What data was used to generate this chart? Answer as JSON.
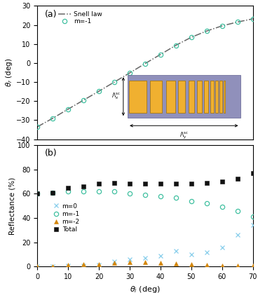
{
  "panel_a": {
    "title": "(a)",
    "ylabel": "θ_r (deg)",
    "xlim": [
      0,
      70
    ],
    "ylim": [
      -40,
      30
    ],
    "yticks": [
      -40,
      -30,
      -20,
      -10,
      0,
      10,
      20,
      30
    ],
    "snell_x": [
      0,
      5,
      10,
      15,
      20,
      25,
      30,
      35,
      40,
      45,
      50,
      55,
      60,
      65,
      70
    ],
    "snell_y": [
      -33.5,
      -29.0,
      -24.2,
      -19.5,
      -14.8,
      -10.0,
      -5.2,
      -0.3,
      4.5,
      9.3,
      13.5,
      16.8,
      19.5,
      21.5,
      23.2
    ],
    "m1_x": [
      0,
      5,
      10,
      15,
      20,
      25,
      30,
      35,
      40,
      45,
      50,
      55,
      60,
      65,
      70
    ],
    "m1_y": [
      -33.5,
      -29.0,
      -24.2,
      -19.5,
      -14.8,
      -10.0,
      -5.2,
      -0.3,
      4.5,
      9.3,
      13.5,
      16.8,
      19.5,
      21.5,
      23.2
    ],
    "snell_color": "#666666",
    "m1_color": "#40c0a0",
    "legend_snell": "Snell law",
    "legend_m1": "m=-1"
  },
  "panel_b": {
    "title": "(b)",
    "xlabel": "θ_i (deg)",
    "ylabel": "Reflectance (%)",
    "xlim": [
      0,
      70
    ],
    "ylim": [
      0,
      100
    ],
    "yticks": [
      0,
      20,
      40,
      60,
      80,
      100
    ],
    "xticks": [
      0,
      10,
      20,
      30,
      40,
      50,
      60,
      70
    ],
    "m0_x": [
      0,
      5,
      10,
      15,
      20,
      25,
      30,
      35,
      40,
      45,
      50,
      55,
      60,
      65,
      70
    ],
    "m0_y": [
      0,
      0.5,
      1,
      1,
      1.5,
      4,
      6,
      7,
      9,
      13,
      10,
      12,
      16,
      26,
      34
    ],
    "m1_x": [
      0,
      5,
      10,
      15,
      20,
      25,
      30,
      35,
      40,
      45,
      50,
      55,
      60,
      65,
      70
    ],
    "m1_y": [
      60,
      61,
      62,
      62,
      62,
      62,
      60,
      59,
      58,
      57,
      54,
      52,
      49,
      46,
      41
    ],
    "m2_x": [
      0,
      5,
      10,
      15,
      20,
      25,
      30,
      35,
      40,
      45,
      50,
      55,
      60,
      65,
      70
    ],
    "m2_y": [
      0,
      0.5,
      1.5,
      2,
      2,
      3,
      3.5,
      3.5,
      3,
      2.5,
      2,
      1.5,
      1,
      1,
      1
    ],
    "total_x": [
      0,
      5,
      10,
      15,
      20,
      25,
      30,
      35,
      40,
      45,
      50,
      55,
      60,
      65,
      70
    ],
    "total_y": [
      60,
      61,
      65,
      66,
      68,
      69,
      68,
      68,
      68,
      68,
      68,
      69,
      70,
      72,
      77
    ],
    "m0_color": "#87ceeb",
    "m1_color": "#40c0a0",
    "m2_color": "#d4860a",
    "total_color": "#111111",
    "legend_m0": "m=0",
    "legend_m1": "m=-1",
    "legend_m2": "m=-2",
    "legend_total": "Total"
  },
  "inset": {
    "bg_color": "#9090bb",
    "rect_color": "#f0b030",
    "rect_border": "#a07000",
    "rect_heights": [
      1.0,
      1.0,
      1.0,
      1.0,
      1.0,
      1.0,
      1.0,
      1.0,
      1.0,
      1.0,
      1.0
    ],
    "rect_widths": [
      0.55,
      0.38,
      0.28,
      0.22,
      0.18,
      0.15,
      0.13,
      0.11,
      0.09,
      0.07,
      0.06
    ],
    "rect_x_starts": [
      0.08,
      0.72,
      1.22,
      1.62,
      1.95,
      2.22,
      2.44,
      2.62,
      2.78,
      2.92,
      3.04
    ]
  }
}
